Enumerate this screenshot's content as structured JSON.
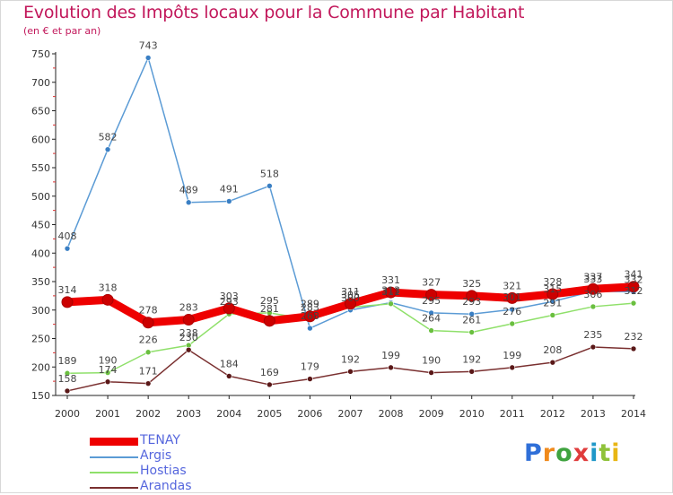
{
  "title": "Evolution des Impôts locaux pour la Commune par Habitant",
  "subtitle": "(en € et par an)",
  "logo": {
    "letters": [
      "P",
      "r",
      "o",
      "x",
      "i",
      "t",
      "i"
    ]
  },
  "chart_data": {
    "type": "line",
    "title": "Evolution des Impôts locaux pour la Commune par Habitant",
    "subtitle": "(en € et par an)",
    "x": [
      "2000",
      "2001",
      "2002",
      "2003",
      "2004",
      "2005",
      "2006",
      "2007",
      "2008",
      "2009",
      "2010",
      "2011",
      "2012",
      "2013",
      "2014"
    ],
    "ylim": [
      150,
      750
    ],
    "yticks": [
      150,
      200,
      250,
      300,
      350,
      400,
      450,
      500,
      550,
      600,
      650,
      700,
      750
    ],
    "grid": false,
    "legend_position": "bottom-left",
    "series": [
      {
        "name": "Argis",
        "color": "#5b9bd5",
        "marker": "#3a7fc4",
        "values": [
          408,
          582,
          743,
          489,
          491,
          518,
          268,
          300,
          313,
          295,
          293,
          301,
          315,
          333,
          332
        ]
      },
      {
        "name": "Hostias",
        "color": "#8fe06a",
        "marker": "#6abf3f",
        "values": [
          189,
          190,
          226,
          238,
          293,
          295,
          283,
          305,
          311,
          264,
          261,
          276,
          291,
          306,
          312
        ]
      },
      {
        "name": "Arandas",
        "color": "#7a3030",
        "marker": "#5a1818",
        "values": [
          158,
          174,
          171,
          230,
          184,
          169,
          179,
          192,
          199,
          190,
          192,
          199,
          208,
          235,
          232
        ]
      },
      {
        "name": "TENAY",
        "color": "#ee0000",
        "marker": "#cc0000",
        "values": [
          314,
          318,
          278,
          283,
          303,
          281,
          289,
          311,
          331,
          327,
          325,
          321,
          328,
          337,
          341
        ]
      }
    ],
    "legend_order": [
      "TENAY",
      "Argis",
      "Hostias",
      "Arandas"
    ]
  }
}
